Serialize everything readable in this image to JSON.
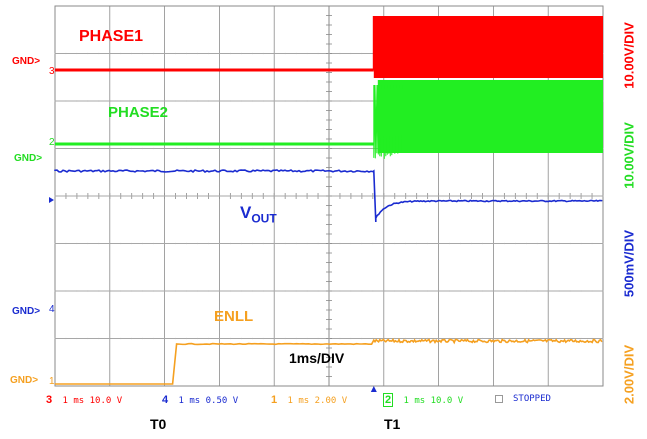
{
  "colors": {
    "phase1": "#ff0000",
    "phase2": "#22ee22",
    "vout": "#1a2bd0",
    "enll": "#f5a020",
    "grid": "#8a8a8a",
    "background": "#ffffff"
  },
  "labels": {
    "phase1": "PHASE1",
    "phase2": "PHASE2",
    "vout_main": "V",
    "vout_sub": "OUT",
    "enll": "ENLL",
    "timebase": "1ms/DIV",
    "t0": "T0",
    "t1": "T1",
    "gnd_phase1": "GND>",
    "gnd_phase2": "GND>",
    "gnd_vout": "GND>",
    "gnd_enll": "GND>",
    "marker_phase1": "3",
    "marker_phase2": "2",
    "marker_vout": "4",
    "marker_enll": "1"
  },
  "scales": {
    "phase1": "10.00V/DIV",
    "phase2": "10.00V/DIV",
    "vout": "500mV/DIV",
    "enll": "2.00V/DIV"
  },
  "status_bar": {
    "ch3_num": "3",
    "ch3_settings": "1 ms 10.0 V",
    "ch4_num": "4",
    "ch4_settings": "1 ms 0.50 V",
    "ch1_num": "1",
    "ch1_settings": "1 ms 2.00 V",
    "ch2_num": "2",
    "ch2_settings": "1 ms 10.0 V",
    "state": "STOPPED"
  }
}
